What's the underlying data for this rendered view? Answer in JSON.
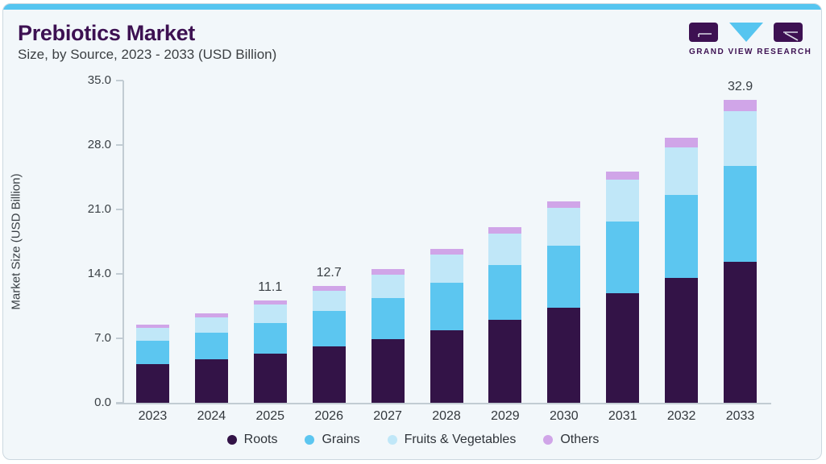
{
  "header": {
    "title": "Prebiotics Market",
    "subtitle": "Size, by Source, 2023 - 2033 (USD Billion)"
  },
  "logo": {
    "text": "GRAND VIEW RESEARCH"
  },
  "colors": {
    "accent": "#56c5f0",
    "brand_purple": "#3d1152",
    "card_bg": "#f2f7fa",
    "card_border": "#ccd8e0",
    "axis_line": "#c2ccd3",
    "text_dark": "#3a4045"
  },
  "chart_data": {
    "type": "bar",
    "stacked": true,
    "title": "Prebiotics Market Size, by Source, 2023 - 2033 (USD Billion)",
    "categories": [
      "2023",
      "2024",
      "2025",
      "2026",
      "2027",
      "2028",
      "2029",
      "2030",
      "2031",
      "2032",
      "2033"
    ],
    "series": [
      {
        "name": "Roots",
        "color": "#331347",
        "values": [
          4.2,
          4.7,
          5.3,
          6.15,
          6.9,
          7.9,
          9.05,
          10.3,
          11.9,
          13.6,
          15.3
        ]
      },
      {
        "name": "Grains",
        "color": "#5cc6f0",
        "values": [
          2.5,
          2.95,
          3.35,
          3.85,
          4.45,
          5.15,
          5.9,
          6.8,
          7.8,
          9.0,
          10.4
        ]
      },
      {
        "name": "Fruits & Vegetables",
        "color": "#c0e7f8",
        "values": [
          1.4,
          1.6,
          2.0,
          2.2,
          2.6,
          3.05,
          3.45,
          4.05,
          4.5,
          5.15,
          5.95
        ]
      },
      {
        "name": "Others",
        "color": "#d0a5e8",
        "values": [
          0.4,
          0.45,
          0.45,
          0.5,
          0.55,
          0.6,
          0.7,
          0.75,
          0.9,
          1.05,
          1.25
        ]
      }
    ],
    "totals": [
      8.5,
      9.7,
      11.1,
      12.7,
      14.5,
      16.7,
      19.1,
      21.9,
      25.1,
      28.8,
      32.9
    ],
    "bar_value_labels": [
      "",
      "",
      "11.1",
      "12.7",
      "",
      "",
      "",
      "",
      "",
      "",
      "32.9"
    ],
    "ylabel": "Market Size (USD Billion)",
    "xlabel": "",
    "ylim": [
      0,
      35
    ],
    "yticks": [
      "0.0",
      "7.0",
      "14.0",
      "21.0",
      "28.0",
      "35.0"
    ],
    "grid": false,
    "legend_position": "bottom"
  }
}
